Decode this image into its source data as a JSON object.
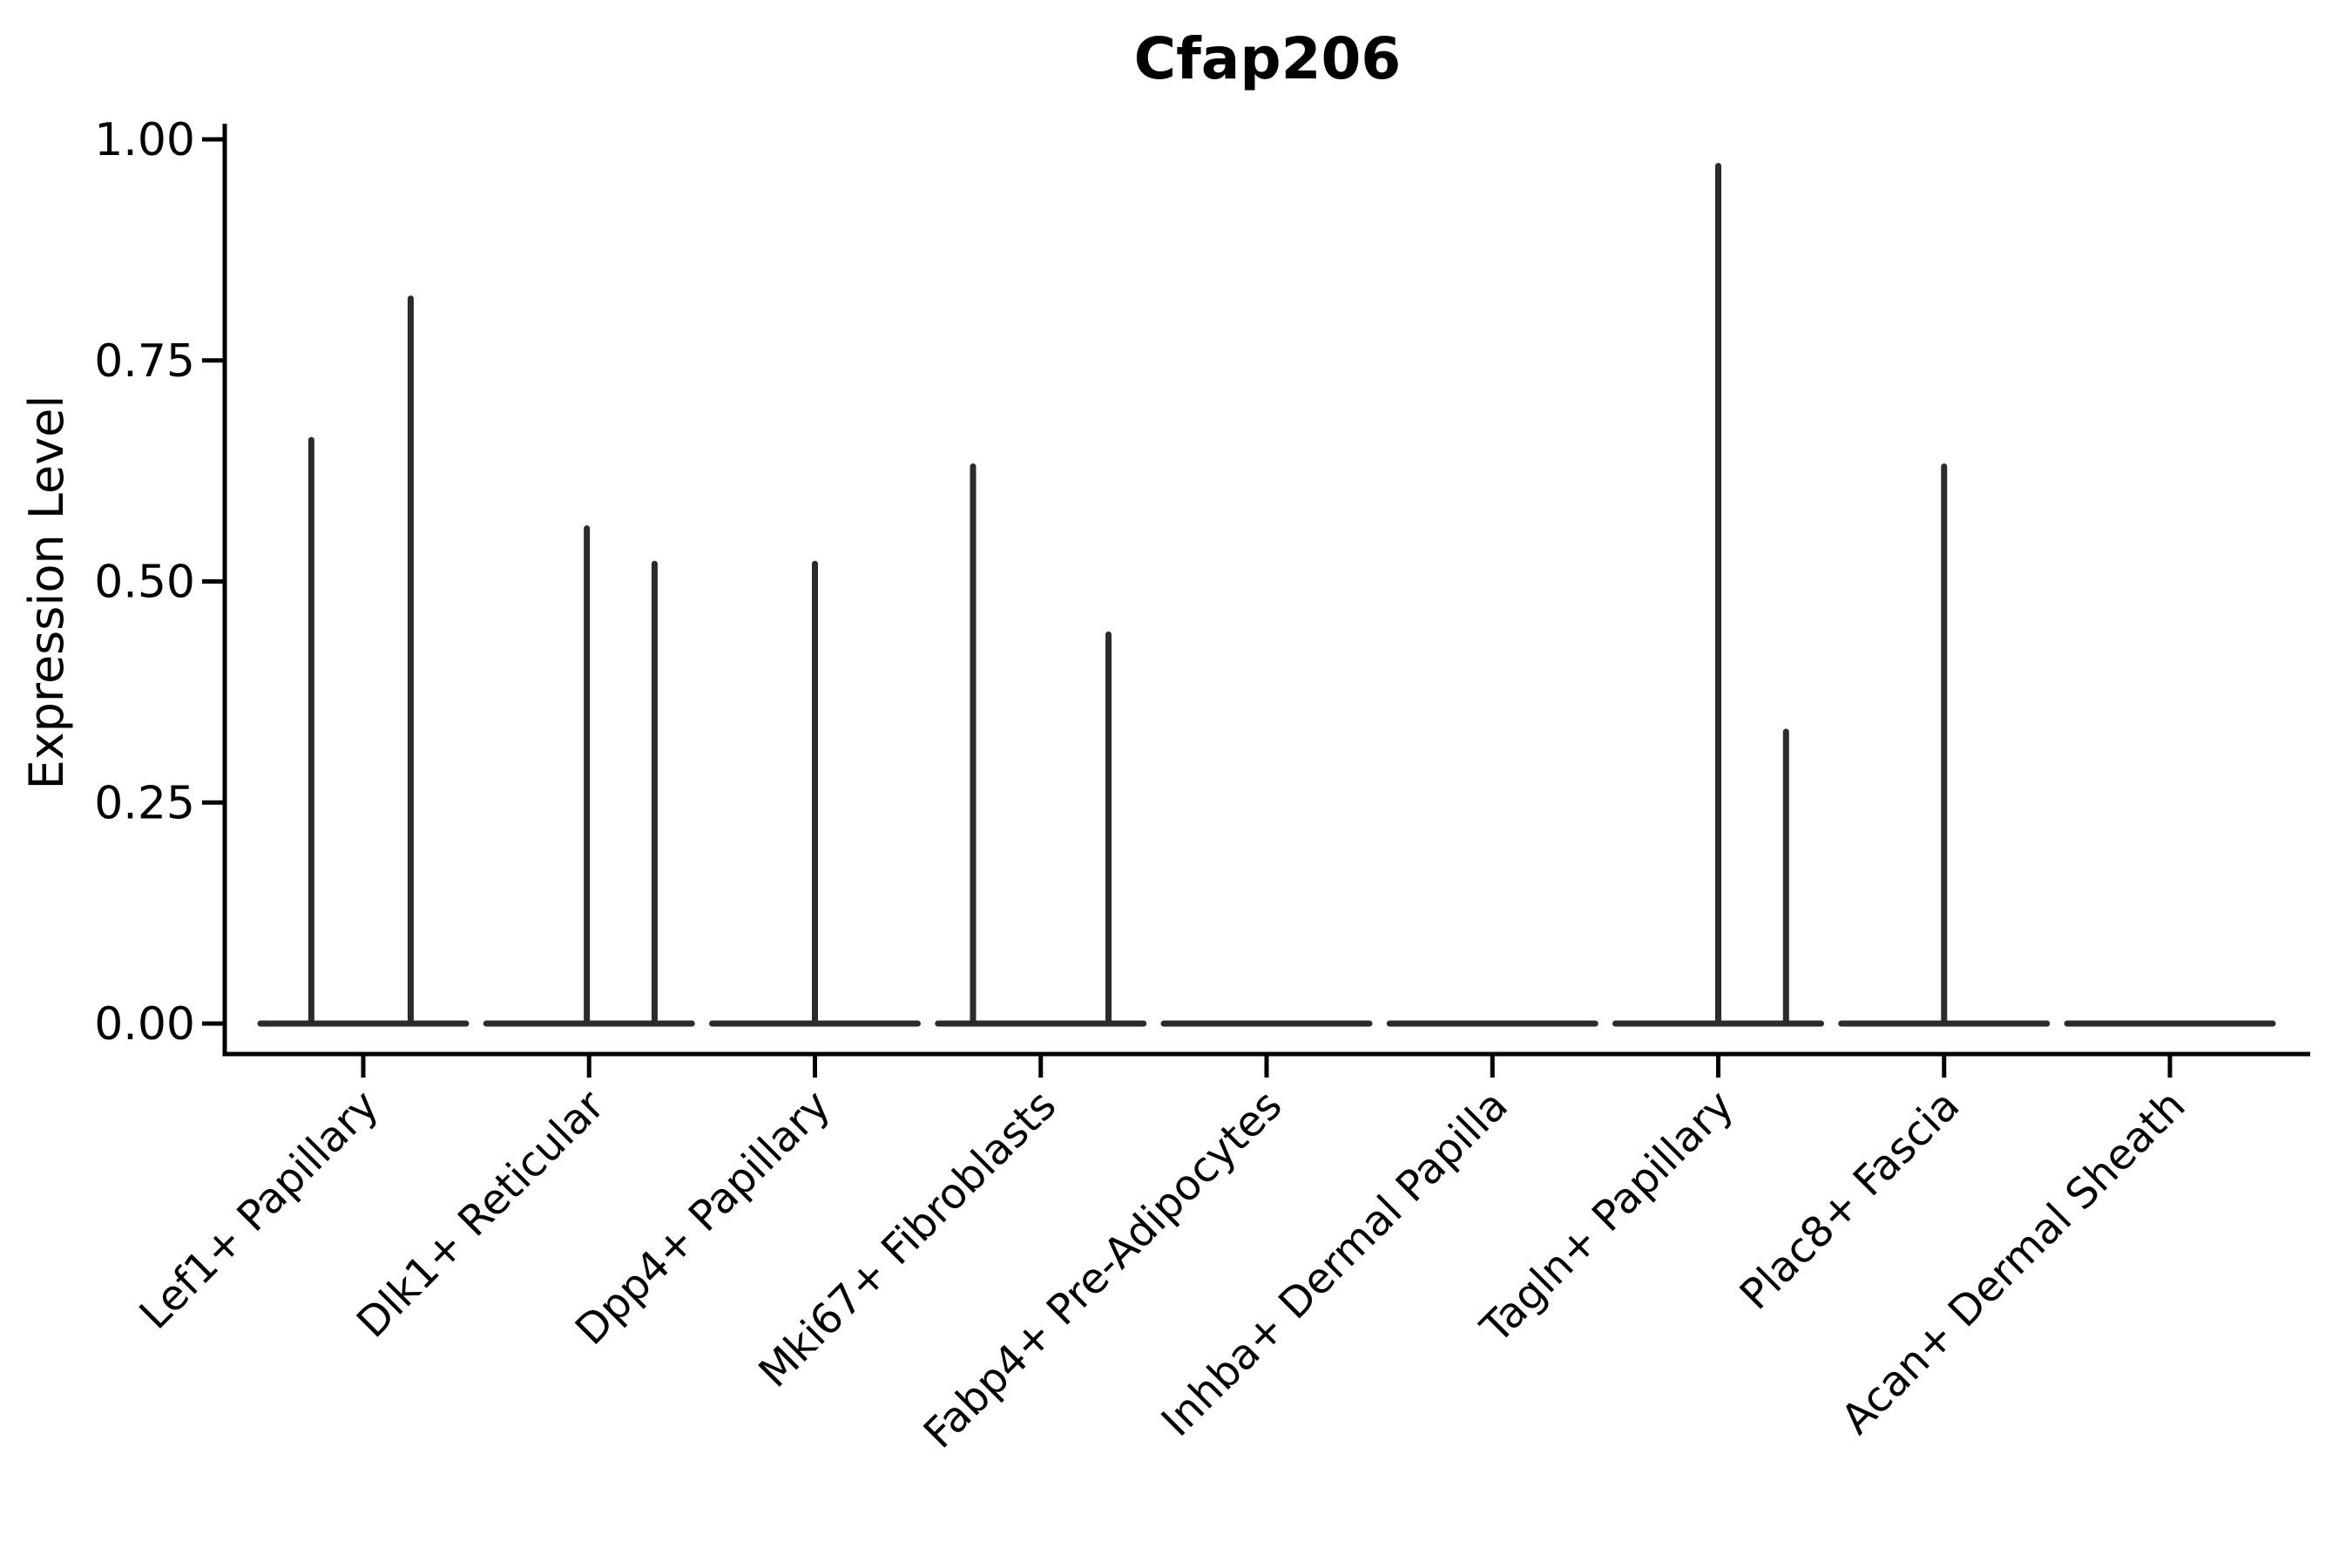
{
  "chart_data": {
    "type": "violin",
    "title": "Cfap206",
    "ylabel": "Expression Level",
    "xlabel": "",
    "ylim": [
      0,
      1.0
    ],
    "yticks": [
      {
        "value": 0.0,
        "label": "0.00"
      },
      {
        "value": 0.25,
        "label": "0.25"
      },
      {
        "value": 0.5,
        "label": "0.50"
      },
      {
        "value": 0.75,
        "label": "0.75"
      },
      {
        "value": 1.0,
        "label": "1.00"
      }
    ],
    "grid": false,
    "legend": "none",
    "categories": [
      "Lef1+ Papillary",
      "Dlk1+ Reticular",
      "Dpp4+ Papillary",
      "Mki67+ Fibroblasts",
      "Fabp4+ Pre-Adipocytes",
      "Inhba+ Dermal Papilla",
      "Tagln+ Papillary",
      "Plac8+ Fascia",
      "Acan+ Dermal Sheath"
    ],
    "series": [
      {
        "category": "Lef1+ Papillary",
        "baseline": 0,
        "spikes": [
          {
            "offset": -0.23,
            "peak": 0.66
          },
          {
            "offset": 0.21,
            "peak": 0.82
          }
        ]
      },
      {
        "category": "Dlk1+ Reticular",
        "baseline": 0,
        "spikes": [
          {
            "offset": -0.01,
            "peak": 0.56
          },
          {
            "offset": 0.29,
            "peak": 0.52
          }
        ]
      },
      {
        "category": "Dpp4+ Papillary",
        "baseline": 0,
        "spikes": [
          {
            "offset": 0.0,
            "peak": 0.52
          }
        ]
      },
      {
        "category": "Mki67+ Fibroblasts",
        "baseline": 0,
        "spikes": [
          {
            "offset": -0.3,
            "peak": 0.63
          },
          {
            "offset": 0.3,
            "peak": 0.44
          }
        ]
      },
      {
        "category": "Fabp4+ Pre-Adipocytes",
        "baseline": 0,
        "spikes": []
      },
      {
        "category": "Inhba+ Dermal Papilla",
        "baseline": 0,
        "spikes": []
      },
      {
        "category": "Tagln+ Papillary",
        "baseline": 0,
        "spikes": [
          {
            "offset": 0.0,
            "peak": 0.97
          },
          {
            "offset": 0.3,
            "peak": 0.33
          }
        ]
      },
      {
        "category": "Plac8+ Fascia",
        "baseline": 0,
        "spikes": [
          {
            "offset": 0.0,
            "peak": 0.63
          }
        ]
      },
      {
        "category": "Acan+ Dermal Sheath",
        "baseline": 0,
        "spikes": []
      }
    ],
    "colors": {
      "violin": "#2b2b2b",
      "axis": "#000000",
      "text": "#000000",
      "background": "#ffffff"
    }
  }
}
